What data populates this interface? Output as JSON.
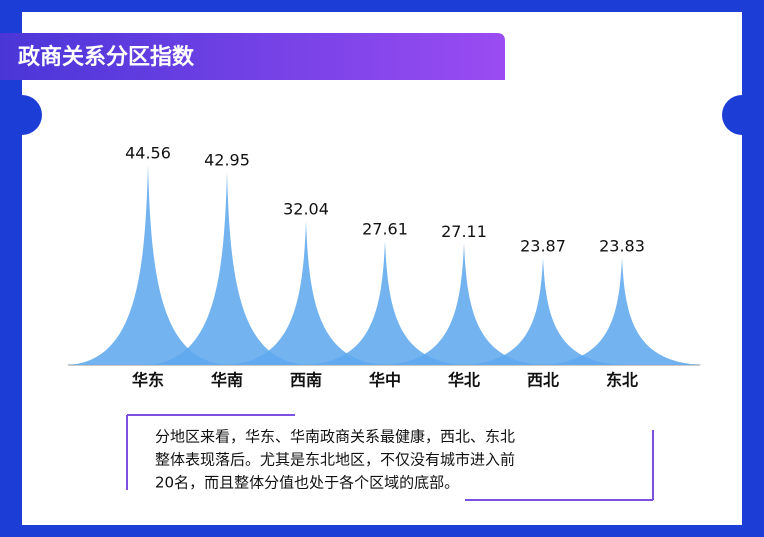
{
  "chart_data": {
    "type": "spike",
    "title": "政商关系分区指数",
    "categories": [
      "华东",
      "华南",
      "西南",
      "华中",
      "华北",
      "西北",
      "东北"
    ],
    "values": [
      44.56,
      42.95,
      32.04,
      27.61,
      27.11,
      23.87,
      23.83
    ],
    "color": "#5ea8ee"
  },
  "note": {
    "lines": [
      "分地区来看，华东、华南政商关系最健康，西北、东北",
      "整体表现落后。尤其是东北地区，不仅没有城市进入前",
      "20名，而且整体分值也处于各个区域的底部。"
    ]
  }
}
